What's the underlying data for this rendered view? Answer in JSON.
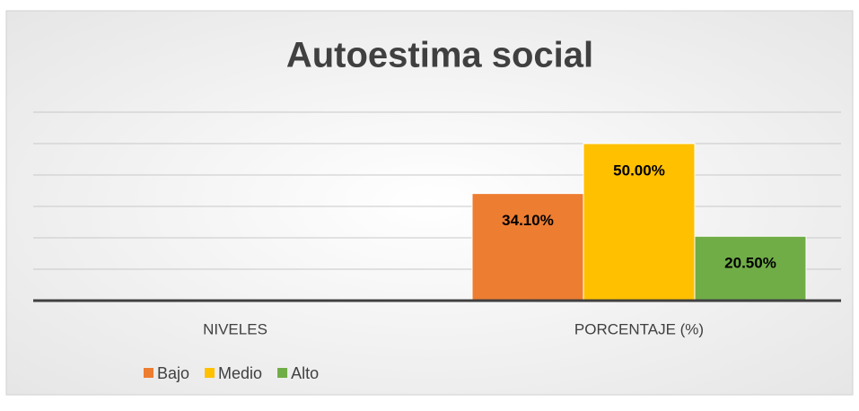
{
  "chart_data": {
    "type": "bar",
    "title": "Autoestima social",
    "categories": [
      "NIVELES",
      "PORCENTAJE (%)"
    ],
    "series": [
      {
        "name": "Bajo",
        "color": "#ed7d31",
        "values": [
          null,
          34.1
        ],
        "value_labels": [
          null,
          "34.10%"
        ]
      },
      {
        "name": "Medio",
        "color": "#ffc000",
        "values": [
          null,
          50
        ],
        "value_labels": [
          null,
          "50.00%"
        ]
      },
      {
        "name": "Alto",
        "color": "#70ad47",
        "values": [
          null,
          20.5
        ],
        "value_labels": [
          null,
          "20.50%"
        ]
      }
    ],
    "ylim": [
      0,
      60
    ],
    "yticks": [
      0,
      10,
      20,
      30,
      40,
      50,
      60
    ],
    "grid": true,
    "legend": "bottom-left"
  }
}
